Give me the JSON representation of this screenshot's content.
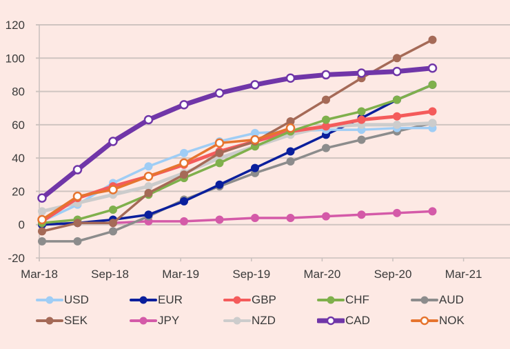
{
  "chart_data": {
    "type": "line",
    "title": "",
    "xlabel": "",
    "ylabel": "",
    "ylim": [
      -20,
      120
    ],
    "yticks": [
      -20,
      0,
      20,
      40,
      60,
      80,
      100,
      120
    ],
    "xtick_labels": [
      "Mar-18",
      "Sep-18",
      "Mar-19",
      "Sep-19",
      "Mar-20",
      "Sep-20",
      "Mar-21"
    ],
    "x": [
      "Mar-18",
      "Jun-18",
      "Sep-18",
      "Dec-18",
      "Mar-19",
      "Jun-19",
      "Sep-19",
      "Dec-19",
      "Mar-20",
      "Jun-20",
      "Sep-20",
      "Dec-20"
    ],
    "grid": "horizontal",
    "legend_position": "bottom",
    "series": [
      {
        "name": "USD",
        "color": "#9fcdf5",
        "marker": "filled",
        "values": [
          2,
          12,
          25,
          35,
          43,
          50,
          55,
          56,
          57,
          57,
          58,
          58
        ]
      },
      {
        "name": "EUR",
        "color": "#0a1f9c",
        "marker": "filled",
        "values": [
          0,
          1,
          3,
          6,
          14,
          24,
          34,
          44,
          54,
          64,
          75,
          84
        ]
      },
      {
        "name": "GBP",
        "color": "#f45b5b",
        "marker": "filled",
        "values": [
          2,
          16,
          23,
          29,
          36,
          44,
          50,
          56,
          59,
          63,
          65,
          68
        ]
      },
      {
        "name": "CHF",
        "color": "#7fb04c",
        "marker": "filled",
        "values": [
          1,
          3,
          9,
          18,
          28,
          37,
          47,
          56,
          63,
          68,
          75,
          84
        ]
      },
      {
        "name": "AUD",
        "color": "#8c8c8c",
        "marker": "filled",
        "values": [
          -10,
          -10,
          -4,
          5,
          15,
          23,
          31,
          38,
          46,
          51,
          56,
          61
        ]
      },
      {
        "name": "SEK",
        "color": "#a56a57",
        "marker": "filled",
        "values": [
          -4,
          1,
          1,
          19,
          30,
          43,
          50,
          62,
          75,
          88,
          100,
          111
        ]
      },
      {
        "name": "JPY",
        "color": "#d45aa8",
        "marker": "filled",
        "values": [
          0,
          1,
          1,
          2,
          2,
          3,
          4,
          4,
          5,
          6,
          7,
          8
        ]
      },
      {
        "name": "NZD",
        "color": "#cccccc",
        "marker": "filled",
        "values": [
          8,
          13,
          18,
          23,
          31,
          40,
          47,
          54,
          59,
          60,
          60,
          61
        ]
      },
      {
        "name": "CAD",
        "color": "#7036a8",
        "marker": "hollow",
        "values": [
          16,
          33,
          50,
          63,
          72,
          79,
          84,
          88,
          90,
          91,
          92,
          94
        ]
      },
      {
        "name": "NOK",
        "color": "#e6742e",
        "marker": "hollow",
        "values": [
          3,
          17,
          21,
          29,
          37,
          49,
          51,
          58,
          null,
          null,
          null,
          null
        ]
      }
    ]
  }
}
